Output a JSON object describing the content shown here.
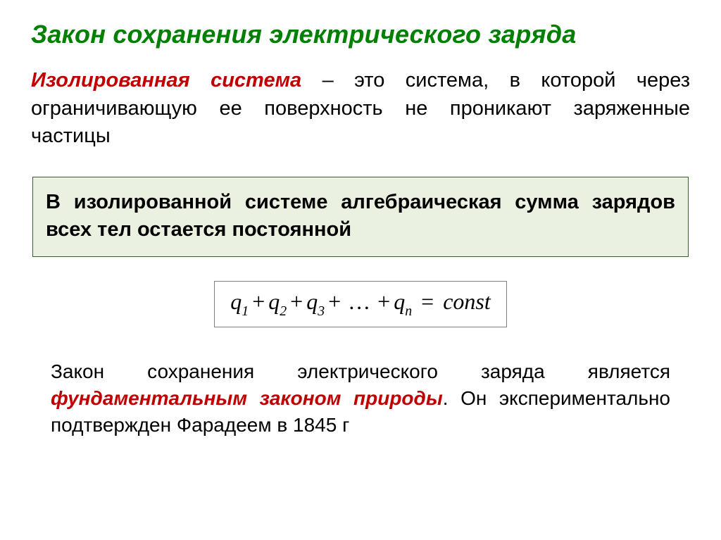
{
  "colors": {
    "title": "#008000",
    "accent": "#c00000",
    "box_border": "#385d2e",
    "box_bg": "#eaf1e0",
    "formula_border": "#7f7f7f",
    "text": "#000000",
    "page_bg": "#ffffff"
  },
  "typography": {
    "title_fontsize": 36,
    "body_fontsize": 29,
    "footer_fontsize": 28,
    "formula_fontsize": 32,
    "title_weight": 700,
    "law_weight": 700
  },
  "title": "Закон  сохранения электрического заряда",
  "definition": {
    "term": "Изолированная система",
    "dash": " – ",
    "rest": "это система, в которой через ограничивающую ее поверхность не проникают заряженные частицы"
  },
  "law_box": "В изолированной системе алгебраическая сумма зарядов всех тел остается постоянной",
  "formula": {
    "terms": [
      "q",
      "q",
      "q",
      "…",
      "q"
    ],
    "subs": [
      "1",
      "2",
      "3",
      "",
      "n"
    ],
    "rhs": "const"
  },
  "footer": {
    "lead": "Закон сохранения электрического заряда является ",
    "emph": "фундаментальным законом природы",
    "tail": ". Он экспериментально подтвержден Фарадеем в 1845 г"
  }
}
